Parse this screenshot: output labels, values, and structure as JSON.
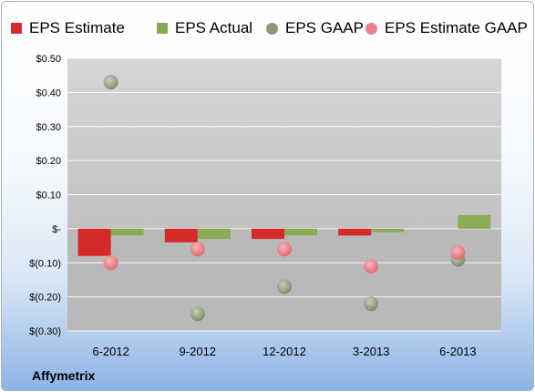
{
  "company": "Affymetrix",
  "colors": {
    "eps_estimate": "#d62a2a",
    "eps_actual": "#8aaa55",
    "eps_gaap": "#8b9a78",
    "eps_estimate_gaap": "#ef7f86"
  },
  "legend": {
    "eps_estimate": "EPS Estimate",
    "eps_actual": "EPS Actual",
    "eps_gaap": "EPS GAAP",
    "eps_estimate_gaap": "EPS Estimate GAAP"
  },
  "chart_data": {
    "type": "bar",
    "categories": [
      "6-2012",
      "9-2012",
      "12-2012",
      "3-2013",
      "6-2013"
    ],
    "yticks": [
      "$0.50",
      "$0.40",
      "$0.30",
      "$0.20",
      "$0.10",
      "$-",
      "$(0.10)",
      "$(0.20)",
      "$(0.30)"
    ],
    "ylim": [
      -0.3,
      0.5
    ],
    "series": [
      {
        "name": "EPS Estimate",
        "kind": "bar",
        "values": [
          -0.08,
          -0.04,
          -0.03,
          -0.02,
          null
        ]
      },
      {
        "name": "EPS Actual",
        "kind": "bar",
        "values": [
          -0.02,
          -0.03,
          -0.02,
          -0.01,
          0.04
        ]
      },
      {
        "name": "EPS GAAP",
        "kind": "scatter",
        "values": [
          0.43,
          -0.25,
          -0.17,
          -0.22,
          -0.09
        ]
      },
      {
        "name": "EPS Estimate GAAP",
        "kind": "scatter",
        "values": [
          -0.1,
          -0.06,
          -0.06,
          -0.11,
          -0.07
        ]
      }
    ]
  }
}
